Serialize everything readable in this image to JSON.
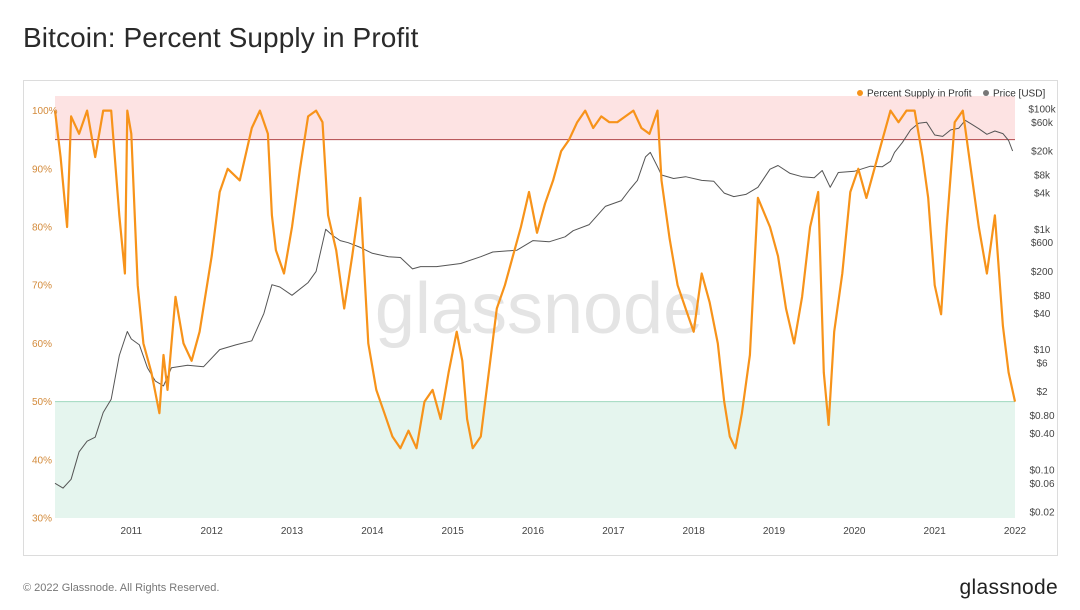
{
  "page": {
    "title": "Bitcoin: Percent Supply in Profit",
    "copyright": "© 2022 Glassnode. All Rights Reserved.",
    "brand": "glassnode",
    "watermark": "glassnode"
  },
  "colors": {
    "profit": "#f7931a",
    "price": "#555555",
    "upper_zone": "#fde3e3",
    "lower_zone": "#e5f5ee",
    "upper_line": "#b0474a",
    "lower_line": "#9fd8be",
    "left_axis_text": "#d38a3a",
    "right_axis_text": "#444444"
  },
  "chart_data": {
    "type": "line",
    "title": "Bitcoin: Percent Supply in Profit",
    "legend": {
      "placement": "top-right",
      "items": [
        {
          "label": "Percent Supply in Profit",
          "color": "#f7931a"
        },
        {
          "label": "Price [USD]",
          "color": "#777777"
        }
      ]
    },
    "x_ticks": [
      "2011",
      "2012",
      "2013",
      "2014",
      "2015",
      "2016",
      "2017",
      "2018",
      "2019",
      "2020",
      "2021",
      "2022"
    ],
    "xlim": [
      2010.55,
      2022.5
    ],
    "left_axis": {
      "ticks": [
        "30%",
        "40%",
        "50%",
        "60%",
        "70%",
        "80%",
        "90%",
        "100%"
      ],
      "ylim": [
        30,
        102.5
      ]
    },
    "right_axis": {
      "scale": "log",
      "ticks": [
        {
          "label": "$100k",
          "value": 100000
        },
        {
          "label": "$60k",
          "value": 60000
        },
        {
          "label": "$20k",
          "value": 20000
        },
        {
          "label": "$8k",
          "value": 8000
        },
        {
          "label": "$4k",
          "value": 4000
        },
        {
          "label": "$1k",
          "value": 1000
        },
        {
          "label": "$600",
          "value": 600
        },
        {
          "label": "$200",
          "value": 200
        },
        {
          "label": "$80",
          "value": 80
        },
        {
          "label": "$40",
          "value": 40
        },
        {
          "label": "$10",
          "value": 10
        },
        {
          "label": "$6",
          "value": 6
        },
        {
          "label": "$2",
          "value": 2
        },
        {
          "label": "$0.80",
          "value": 0.8
        },
        {
          "label": "$0.40",
          "value": 0.4
        },
        {
          "label": "$0.10",
          "value": 0.1
        },
        {
          "label": "$0.06",
          "value": 0.06
        },
        {
          "label": "$0.02",
          "value": 0.02
        }
      ]
    },
    "bands": {
      "upper": [
        95,
        102.5
      ],
      "lower": [
        30,
        50
      ]
    },
    "series": [
      {
        "name": "Percent Supply in Profit",
        "axis": "left",
        "x": [
          2010.55,
          2010.62,
          2010.7,
          2010.75,
          2010.85,
          2010.95,
          2011.05,
          2011.15,
          2011.25,
          2011.35,
          2011.42,
          2011.45,
          2011.5,
          2011.58,
          2011.65,
          2011.75,
          2011.85,
          2011.9,
          2011.95,
          2012.05,
          2012.15,
          2012.25,
          2012.35,
          2012.5,
          2012.6,
          2012.7,
          2012.85,
          2013.0,
          2013.1,
          2013.2,
          2013.25,
          2013.3,
          2013.4,
          2013.5,
          2013.6,
          2013.7,
          2013.8,
          2013.88,
          2013.95,
          2014.05,
          2014.15,
          2014.25,
          2014.35,
          2014.45,
          2014.55,
          2014.65,
          2014.75,
          2014.85,
          2014.95,
          2015.05,
          2015.15,
          2015.25,
          2015.35,
          2015.45,
          2015.55,
          2015.62,
          2015.68,
          2015.75,
          2015.85,
          2015.95,
          2016.05,
          2016.15,
          2016.25,
          2016.35,
          2016.45,
          2016.55,
          2016.65,
          2016.75,
          2016.85,
          2016.95,
          2017.05,
          2017.15,
          2017.25,
          2017.35,
          2017.45,
          2017.55,
          2017.65,
          2017.75,
          2017.85,
          2017.95,
          2018.05,
          2018.1,
          2018.2,
          2018.3,
          2018.4,
          2018.5,
          2018.6,
          2018.7,
          2018.8,
          2018.88,
          2018.95,
          2019.02,
          2019.1,
          2019.2,
          2019.3,
          2019.45,
          2019.55,
          2019.65,
          2019.75,
          2019.85,
          2019.95,
          2020.05,
          2020.12,
          2020.18,
          2020.25,
          2020.35,
          2020.45,
          2020.55,
          2020.65,
          2020.75,
          2020.85,
          2020.95,
          2021.05,
          2021.15,
          2021.25,
          2021.35,
          2021.42,
          2021.5,
          2021.58,
          2021.65,
          2021.75,
          2021.85,
          2021.95,
          2022.05,
          2022.15,
          2022.25,
          2022.35,
          2022.42,
          2022.5
        ],
        "values": [
          100,
          92,
          80,
          99,
          96,
          100,
          92,
          100,
          100,
          82,
          72,
          100,
          96,
          70,
          60,
          55,
          48,
          58,
          52,
          68,
          60,
          57,
          62,
          75,
          86,
          90,
          88,
          97,
          100,
          96,
          82,
          76,
          72,
          80,
          90,
          99,
          100,
          98,
          82,
          76,
          66,
          75,
          85,
          60,
          52,
          48,
          44,
          42,
          45,
          42,
          50,
          52,
          47,
          55,
          62,
          57,
          47,
          42,
          44,
          55,
          66,
          70,
          75,
          80,
          86,
          79,
          84,
          88,
          93,
          95,
          98,
          100,
          97,
          99,
          98,
          98,
          99,
          100,
          97,
          96,
          100,
          88,
          78,
          70,
          66,
          62,
          72,
          67,
          60,
          50,
          44,
          42,
          48,
          58,
          85,
          80,
          75,
          66,
          60,
          68,
          80,
          86,
          55,
          46,
          62,
          72,
          86,
          90,
          85,
          90,
          95,
          100,
          98,
          100,
          100,
          92,
          85,
          70,
          65,
          80,
          98,
          100,
          90,
          80,
          72,
          82,
          63,
          55,
          50
        ]
      },
      {
        "name": "Price [USD]",
        "axis": "right",
        "x": [
          2010.55,
          2010.65,
          2010.75,
          2010.85,
          2010.95,
          2011.05,
          2011.15,
          2011.25,
          2011.35,
          2011.45,
          2011.5,
          2011.6,
          2011.7,
          2011.8,
          2011.9,
          2012.0,
          2012.2,
          2012.4,
          2012.6,
          2012.8,
          2013.0,
          2013.15,
          2013.25,
          2013.35,
          2013.5,
          2013.7,
          2013.8,
          2013.92,
          2014.0,
          2014.1,
          2014.2,
          2014.35,
          2014.5,
          2014.7,
          2014.85,
          2015.0,
          2015.1,
          2015.3,
          2015.6,
          2015.85,
          2016.0,
          2016.3,
          2016.5,
          2016.7,
          2016.9,
          2017.0,
          2017.2,
          2017.4,
          2017.6,
          2017.7,
          2017.8,
          2017.9,
          2017.96,
          2018.05,
          2018.1,
          2018.25,
          2018.4,
          2018.6,
          2018.75,
          2018.88,
          2019.0,
          2019.15,
          2019.3,
          2019.45,
          2019.55,
          2019.7,
          2019.85,
          2020.0,
          2020.1,
          2020.2,
          2020.3,
          2020.5,
          2020.7,
          2020.85,
          2020.95,
          2021.0,
          2021.1,
          2021.2,
          2021.3,
          2021.4,
          2021.5,
          2021.6,
          2021.7,
          2021.8,
          2021.88,
          2021.95,
          2022.05,
          2022.15,
          2022.25,
          2022.35,
          2022.42,
          2022.47
        ],
        "values": [
          0.06,
          0.05,
          0.07,
          0.2,
          0.3,
          0.35,
          0.9,
          1.5,
          8,
          20,
          15,
          12,
          5,
          3,
          2.5,
          5,
          5.5,
          5.2,
          10,
          12,
          14,
          40,
          120,
          110,
          80,
          130,
          200,
          1000,
          800,
          650,
          600,
          500,
          400,
          350,
          340,
          220,
          240,
          240,
          270,
          350,
          420,
          450,
          650,
          620,
          750,
          950,
          1200,
          2400,
          3000,
          4500,
          6500,
          16000,
          19000,
          11000,
          8000,
          7000,
          7500,
          6500,
          6300,
          4000,
          3500,
          3800,
          5000,
          10000,
          11500,
          8500,
          7500,
          7200,
          9500,
          5000,
          8800,
          9200,
          11200,
          11000,
          13500,
          19000,
          28000,
          45000,
          58000,
          60000,
          37000,
          35000,
          45000,
          48000,
          65000,
          57000,
          47000,
          38000,
          43000,
          39000,
          30000,
          20000
        ]
      }
    ]
  }
}
